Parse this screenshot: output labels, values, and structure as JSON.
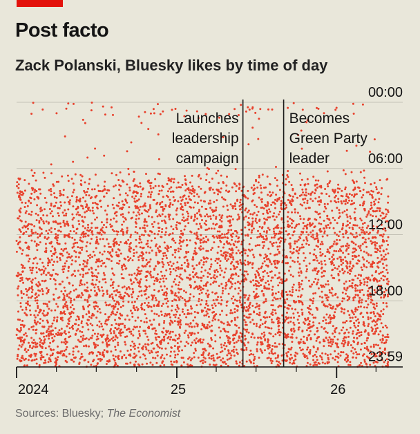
{
  "header": {
    "title": "Post facto",
    "subtitle": "Zack Polanski, Bluesky likes by time of day"
  },
  "footer": {
    "source_prefix": "Sources: Bluesky; ",
    "source_emph": "The Economist"
  },
  "colors": {
    "accent": "#e3120b",
    "dot": "#e8412c",
    "background": "#e9e7da",
    "grid": "#c3c1b5",
    "event_line": "#1a1a1a"
  },
  "chart_data": {
    "type": "scatter",
    "title": "Post facto",
    "subtitle": "Zack Polanski, Bluesky likes by time of day",
    "x_axis": {
      "type": "date",
      "start": "2024-01-01",
      "end": "2026-06-01",
      "data_start": "2024-01-01",
      "data_end": "2026-04-30",
      "tick_labels": [
        {
          "label": "2024",
          "date": "2024-01-01"
        },
        {
          "label": "25",
          "date": "2025-01-01"
        },
        {
          "label": "26",
          "date": "2026-01-01"
        }
      ],
      "minor_ticks": "quarterly"
    },
    "y_axis": {
      "type": "time_of_day",
      "inverted": true,
      "range_hours": [
        0,
        24
      ],
      "tick_labels": [
        {
          "label": "00:00",
          "hour": 0
        },
        {
          "label": "06:00",
          "hour": 6
        },
        {
          "label": "12:00",
          "hour": 12
        },
        {
          "label": "18:00",
          "hour": 18
        },
        {
          "label": "23:59",
          "hour": 23.98
        }
      ],
      "position": "right",
      "grid": true
    },
    "density_profile_by_hour": [
      {
        "hour": 0,
        "relative_density": 0.15
      },
      {
        "hour": 1,
        "relative_density": 0.1
      },
      {
        "hour": 2,
        "relative_density": 0.05
      },
      {
        "hour": 3,
        "relative_density": 0.03
      },
      {
        "hour": 4,
        "relative_density": 0.02
      },
      {
        "hour": 5,
        "relative_density": 0.02
      },
      {
        "hour": 6,
        "relative_density": 0.05
      },
      {
        "hour": 7,
        "relative_density": 0.4
      },
      {
        "hour": 8,
        "relative_density": 0.8
      },
      {
        "hour": 12,
        "relative_density": 0.85
      },
      {
        "hour": 18,
        "relative_density": 0.9
      },
      {
        "hour": 22,
        "relative_density": 1.0
      },
      {
        "hour": 24,
        "relative_density": 0.95
      }
    ],
    "annotations": [
      {
        "date": "2025-06-01",
        "lines": [
          "Launches",
          "leadership",
          "campaign"
        ],
        "side": "left"
      },
      {
        "date": "2025-09-02",
        "lines": [
          "Becomes",
          "Green Party",
          "leader"
        ],
        "side": "right"
      }
    ]
  }
}
